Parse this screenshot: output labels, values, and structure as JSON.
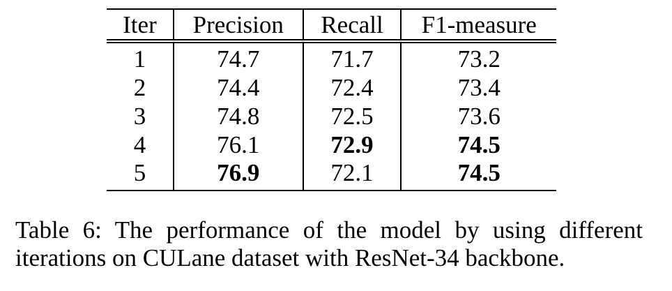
{
  "table": {
    "headers": [
      "Iter",
      "Precision",
      "Recall",
      "F1-measure"
    ],
    "rows": [
      {
        "iter": "1",
        "precision": "74.7",
        "recall": "71.7",
        "f1": "73.2"
      },
      {
        "iter": "2",
        "precision": "74.4",
        "recall": "72.4",
        "f1": "73.4"
      },
      {
        "iter": "3",
        "precision": "74.8",
        "recall": "72.5",
        "f1": "73.6"
      },
      {
        "iter": "4",
        "precision": "76.1",
        "recall": "72.9",
        "f1": "74.5"
      },
      {
        "iter": "5",
        "precision": "76.9",
        "recall": "72.1",
        "f1": "74.5"
      }
    ],
    "bold_cells": [
      "rows.3.recall",
      "rows.3.f1",
      "rows.4.precision",
      "rows.4.f1"
    ]
  },
  "caption": {
    "line1": "Table 6: The performance of the model by using different",
    "line2": "iterations on CULane dataset with ResNet-34 backbone."
  }
}
